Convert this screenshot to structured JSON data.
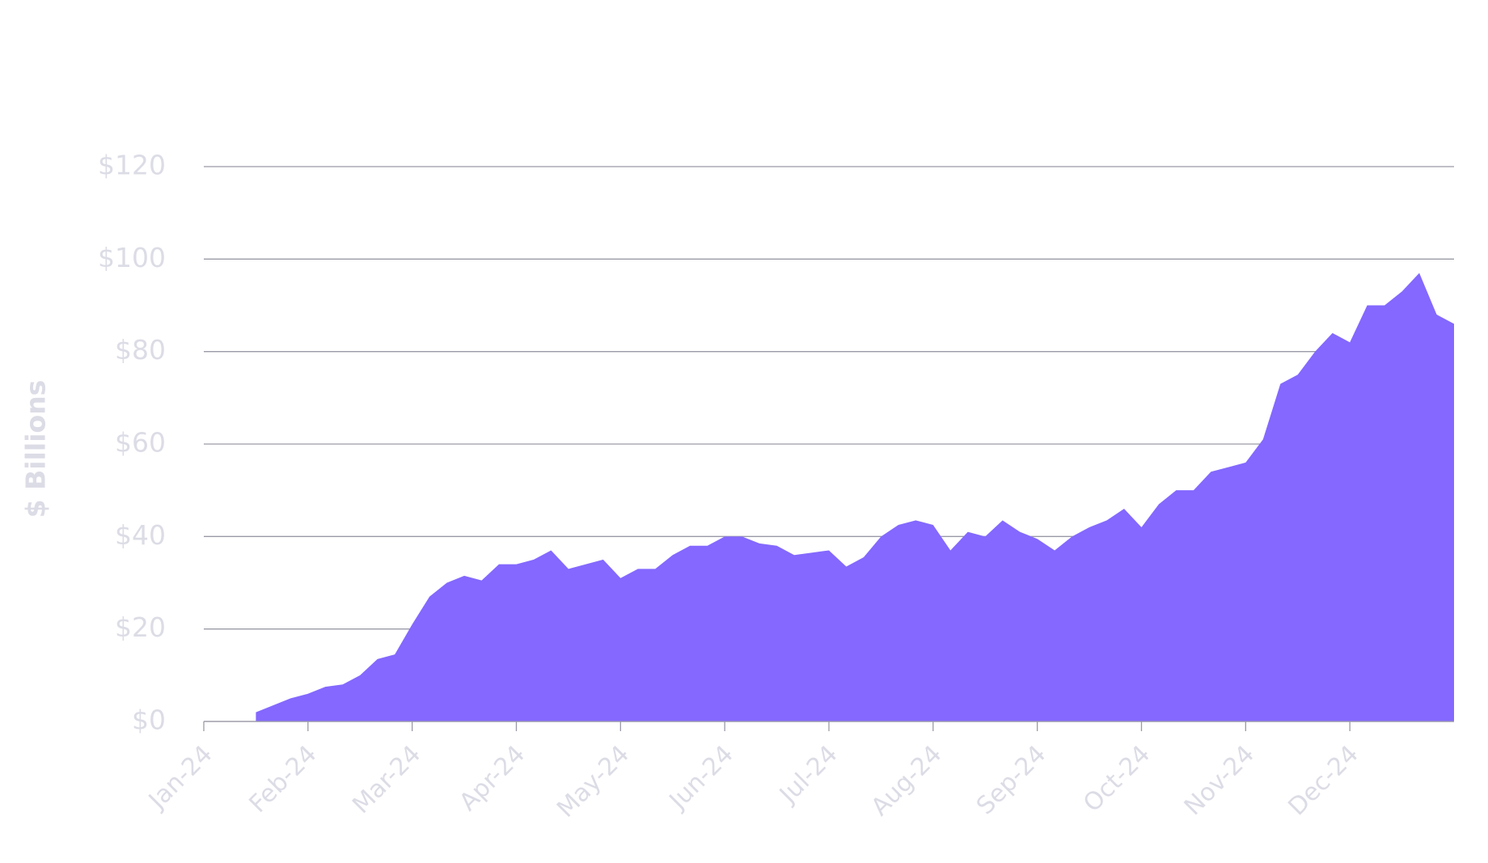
{
  "chart_data": {
    "type": "area",
    "y_label": "$ Billions",
    "color": "#8468ff",
    "categories": [
      "Jan-24",
      null,
      null,
      null,
      null,
      null,
      "Feb-24",
      null,
      null,
      null,
      null,
      null,
      "Mar-24",
      null,
      null,
      null,
      null,
      null,
      "Apr-24",
      null,
      null,
      null,
      null,
      null,
      "May-24",
      null,
      null,
      null,
      null,
      null,
      "Jun-24",
      null,
      null,
      null,
      null,
      null,
      "Jul-24",
      null,
      null,
      null,
      null,
      null,
      "Aug-24",
      null,
      null,
      null,
      null,
      null,
      "Sep-24",
      null,
      null,
      null,
      null,
      null,
      "Oct-24",
      null,
      null,
      null,
      null,
      null,
      "Nov-24",
      null,
      null,
      null,
      null,
      null,
      "Dec-24",
      null,
      null,
      null,
      null,
      null,
      null
    ],
    "values": [
      null,
      null,
      null,
      2,
      3.5,
      5,
      6,
      7.5,
      8,
      10,
      13.5,
      14.5,
      21,
      27,
      30,
      31.5,
      30.5,
      34,
      34,
      35,
      37,
      33,
      34,
      35,
      31,
      33,
      33,
      36,
      38,
      38,
      40,
      40,
      38.5,
      38,
      36,
      36.5,
      37,
      33.5,
      35.5,
      40,
      42.5,
      43.5,
      42.5,
      37,
      41,
      40,
      43.5,
      41,
      39.5,
      37,
      40,
      42,
      43.5,
      46,
      42,
      47,
      50,
      50,
      54,
      55,
      56,
      61,
      73,
      75,
      80,
      84,
      82,
      90,
      90,
      93,
      97,
      88,
      86
    ],
    "ylim": [
      0,
      120
    ],
    "yticks": [
      {
        "value": 0,
        "label": "$0"
      },
      {
        "value": 20,
        "label": "$20"
      },
      {
        "value": 40,
        "label": "$40"
      },
      {
        "value": 60,
        "label": "$60"
      },
      {
        "value": 80,
        "label": "$80"
      },
      {
        "value": 100,
        "label": "$100"
      },
      {
        "value": 120,
        "label": "$120"
      }
    ],
    "grid": true
  }
}
